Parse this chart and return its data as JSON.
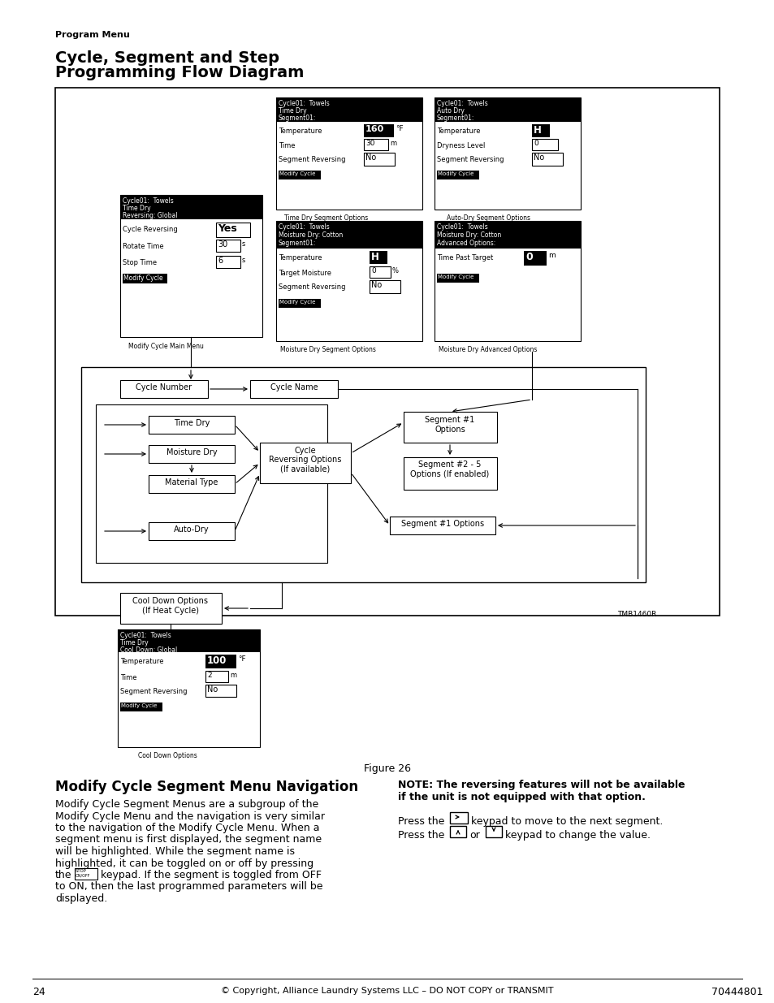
{
  "page_title": "Program Menu",
  "copyright": "© Copyright, Alliance Laundry Systems LLC – DO NOT COPY or TRANSMIT",
  "page_num": "24",
  "doc_num": "70444801",
  "watermark": "TMB1460R",
  "bg_color": "#ffffff"
}
